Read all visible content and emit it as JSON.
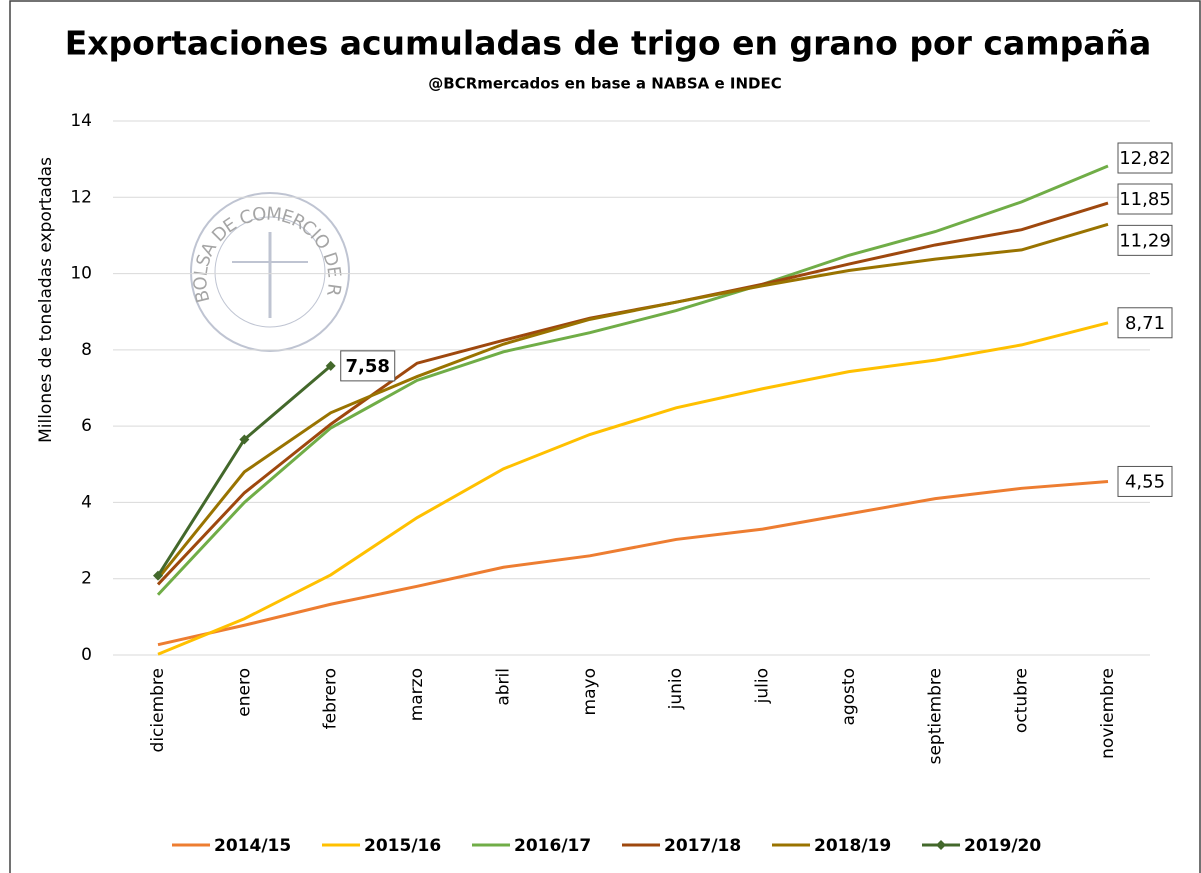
{
  "chart_data": {
    "type": "line",
    "title": "Exportaciones acumuladas de trigo en grano por campaña",
    "subtitle": "@BCRmercados en base a NABSA e INDEC",
    "y_label": "Millones de toneladas exportadas",
    "watermark": "BOLSA DE COMERCIO DE ROSARIO",
    "categories": [
      "diciembre",
      "enero",
      "febrero",
      "marzo",
      "abril",
      "mayo",
      "junio",
      "julio",
      "agosto",
      "septiembre",
      "octubre",
      "noviembre"
    ],
    "ylim": [
      0,
      14
    ],
    "yticks": [
      0,
      2,
      4,
      6,
      8,
      10,
      12,
      14
    ],
    "grid": true,
    "legend": "bottom",
    "series": [
      {
        "name": "2014/15",
        "color": "#ed7d31",
        "values": [
          0.27,
          0.78,
          1.33,
          1.8,
          2.3,
          2.6,
          3.03,
          3.3,
          3.7,
          4.1,
          4.37,
          4.55
        ],
        "value_labels": [
          null,
          null,
          null,
          null,
          null,
          null,
          null,
          null,
          null,
          null,
          null,
          "4,55"
        ]
      },
      {
        "name": "2015/16",
        "color": "#ffc000",
        "values": [
          0.02,
          0.95,
          2.1,
          3.6,
          4.88,
          5.78,
          6.48,
          6.98,
          7.43,
          7.73,
          8.13,
          8.71
        ],
        "value_labels": [
          null,
          null,
          null,
          null,
          null,
          null,
          null,
          null,
          null,
          null,
          null,
          "8,71"
        ]
      },
      {
        "name": "2016/17",
        "color": "#70ad47",
        "values": [
          1.58,
          4.0,
          5.95,
          7.2,
          7.95,
          8.45,
          9.03,
          9.72,
          10.48,
          11.1,
          11.88,
          12.82
        ],
        "value_labels": [
          null,
          null,
          null,
          null,
          null,
          null,
          null,
          null,
          null,
          null,
          null,
          "12,82"
        ]
      },
      {
        "name": "2017/18",
        "color": "#9e480e",
        "values": [
          1.85,
          4.25,
          6.05,
          7.65,
          8.25,
          8.83,
          9.25,
          9.72,
          10.25,
          10.75,
          11.15,
          11.85
        ],
        "value_labels": [
          null,
          null,
          null,
          null,
          null,
          null,
          null,
          null,
          null,
          null,
          null,
          "11,85"
        ]
      },
      {
        "name": "2018/19",
        "color": "#997300",
        "values": [
          2.0,
          4.8,
          6.35,
          7.3,
          8.15,
          8.8,
          9.25,
          9.68,
          10.08,
          10.38,
          10.62,
          11.29
        ],
        "value_labels": [
          null,
          null,
          null,
          null,
          null,
          null,
          null,
          null,
          null,
          null,
          null,
          "11,29"
        ]
      },
      {
        "name": "2019/20",
        "color": "#43682b",
        "marker": "diamond",
        "values": [
          2.08,
          5.65,
          7.58,
          null,
          null,
          null,
          null,
          null,
          null,
          null,
          null,
          null
        ],
        "value_labels": [
          null,
          null,
          "7,58",
          null,
          null,
          null,
          null,
          null,
          null,
          null,
          null,
          null
        ]
      }
    ]
  }
}
